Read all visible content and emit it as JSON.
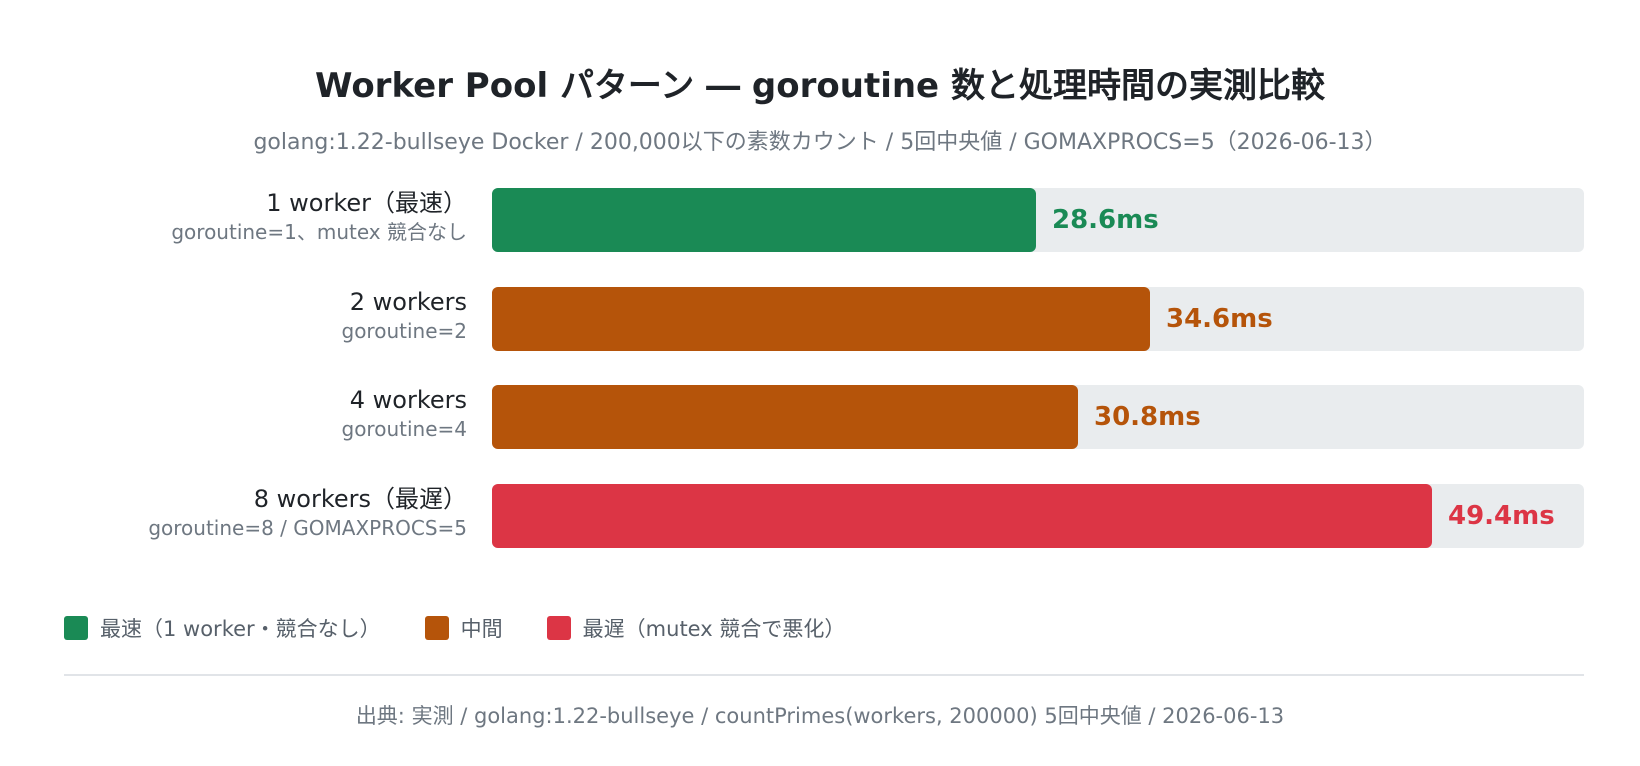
{
  "chart_data": {
    "type": "bar",
    "orientation": "horizontal",
    "title": "Worker Pool パターン ― goroutine 数と処理時間の実測比較",
    "subtitle": "golang:1.22-bullseye Docker / 200,000以下の素数カウント / 5回中央値 / GOMAXPROCS=5（2026-06-13）",
    "xlim": [
      0,
      57.4
    ],
    "grid": false,
    "legend_position": "bottom-left",
    "categories": [
      {
        "label": "1 worker（最速）",
        "sublabel": "goroutine=1、mutex 競合なし",
        "value": 28.6,
        "value_label": "28.6ms",
        "group": "fastest"
      },
      {
        "label": "2 workers",
        "sublabel": "goroutine=2",
        "value": 34.6,
        "value_label": "34.6ms",
        "group": "middle"
      },
      {
        "label": "4 workers",
        "sublabel": "goroutine=4",
        "value": 30.8,
        "value_label": "30.8ms",
        "group": "middle"
      },
      {
        "label": "8 workers（最遅）",
        "sublabel": "goroutine=8 / GOMAXPROCS=5",
        "value": 49.4,
        "value_label": "49.4ms",
        "group": "slowest"
      }
    ],
    "colors": {
      "fastest": "#1a8a55",
      "middle": "#b5540a",
      "slowest": "#dc3545",
      "inside_label": "#f2f4f5"
    },
    "legend": [
      {
        "key": "fastest",
        "label": "最速（1 worker・競合なし）"
      },
      {
        "key": "middle",
        "label": "中間"
      },
      {
        "key": "slowest",
        "label": "最遅（mutex 競合で悪化）"
      }
    ],
    "source": "出典: 実測 / golang:1.22-bullseye / countPrimes(workers, 200000) 5回中央値 / 2026-06-13"
  }
}
